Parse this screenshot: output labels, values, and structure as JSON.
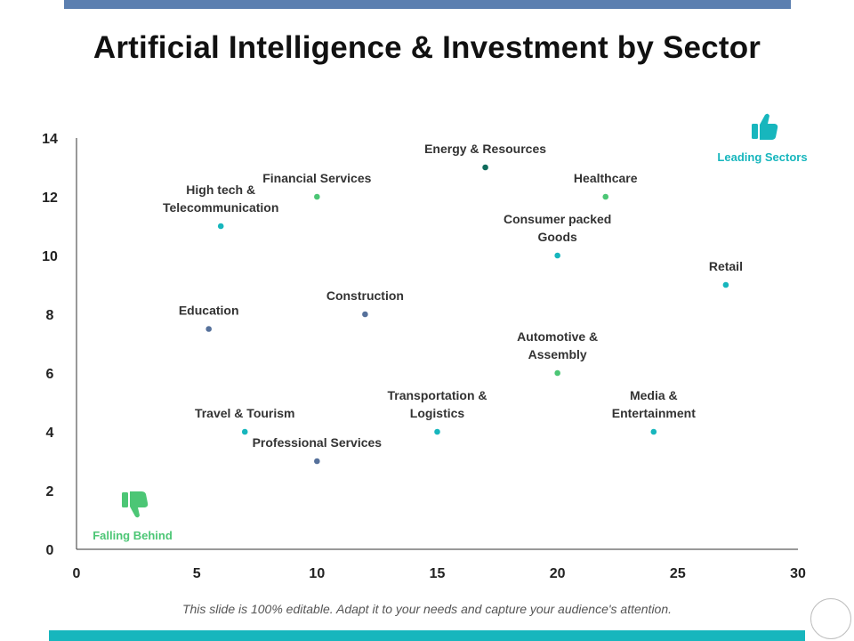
{
  "slide": {
    "title": "Artificial Intelligence & Investment by Sector",
    "footer": "This slide is 100% editable. Adapt it to your needs and capture your audience's attention."
  },
  "colors": {
    "top_bar": "#5b7fb0",
    "bottom_bar": "#17b6bd",
    "teal": "#17b6bd",
    "green": "#4cc675",
    "navy": "#56719b",
    "dark_green": "#0f6b5c"
  },
  "chart_data": {
    "type": "scatter",
    "title": "Artificial Intelligence & Investment by Sector",
    "xlabel": "",
    "ylabel": "",
    "xlim": [
      0,
      30
    ],
    "ylim": [
      0,
      14
    ],
    "xticks": [
      0,
      5,
      10,
      15,
      20,
      25,
      30
    ],
    "yticks": [
      0,
      2,
      4,
      6,
      8,
      10,
      12,
      14
    ],
    "grid": false,
    "points": [
      {
        "label": [
          "High tech &",
          "Telecommunication"
        ],
        "x": 6,
        "y": 11,
        "color": "#17b6bd"
      },
      {
        "label": [
          "Financial Services"
        ],
        "x": 10,
        "y": 12,
        "color": "#4cc675"
      },
      {
        "label": [
          "Energy & Resources"
        ],
        "x": 17,
        "y": 13,
        "color": "#0f6b5c"
      },
      {
        "label": [
          "Healthcare"
        ],
        "x": 22,
        "y": 12,
        "color": "#4cc675"
      },
      {
        "label": [
          "Consumer packed",
          "Goods"
        ],
        "x": 20,
        "y": 10,
        "color": "#17b6bd"
      },
      {
        "label": [
          "Retail"
        ],
        "x": 27,
        "y": 9,
        "color": "#17b6bd"
      },
      {
        "label": [
          "Construction"
        ],
        "x": 12,
        "y": 8,
        "color": "#56719b"
      },
      {
        "label": [
          "Education"
        ],
        "x": 5.5,
        "y": 7.5,
        "color": "#56719b"
      },
      {
        "label": [
          "Automotive &",
          "Assembly"
        ],
        "x": 20,
        "y": 6,
        "color": "#4cc675"
      },
      {
        "label": [
          "Transportation &",
          "Logistics"
        ],
        "x": 15,
        "y": 4,
        "color": "#17b6bd"
      },
      {
        "label": [
          "Media &",
          "Entertainment"
        ],
        "x": 24,
        "y": 4,
        "color": "#17b6bd"
      },
      {
        "label": [
          "Travel & Tourism"
        ],
        "x": 7,
        "y": 4,
        "color": "#17b6bd"
      },
      {
        "label": [
          "Professional Services"
        ],
        "x": 10,
        "y": 3,
        "color": "#56719b"
      }
    ],
    "annotations": {
      "leading": {
        "text": "Leading Sectors",
        "icon": "thumbs-up-icon",
        "color": "#17b6bd"
      },
      "falling": {
        "text": "Falling Behind",
        "icon": "thumbs-down-icon",
        "color": "#4cc675"
      }
    }
  }
}
